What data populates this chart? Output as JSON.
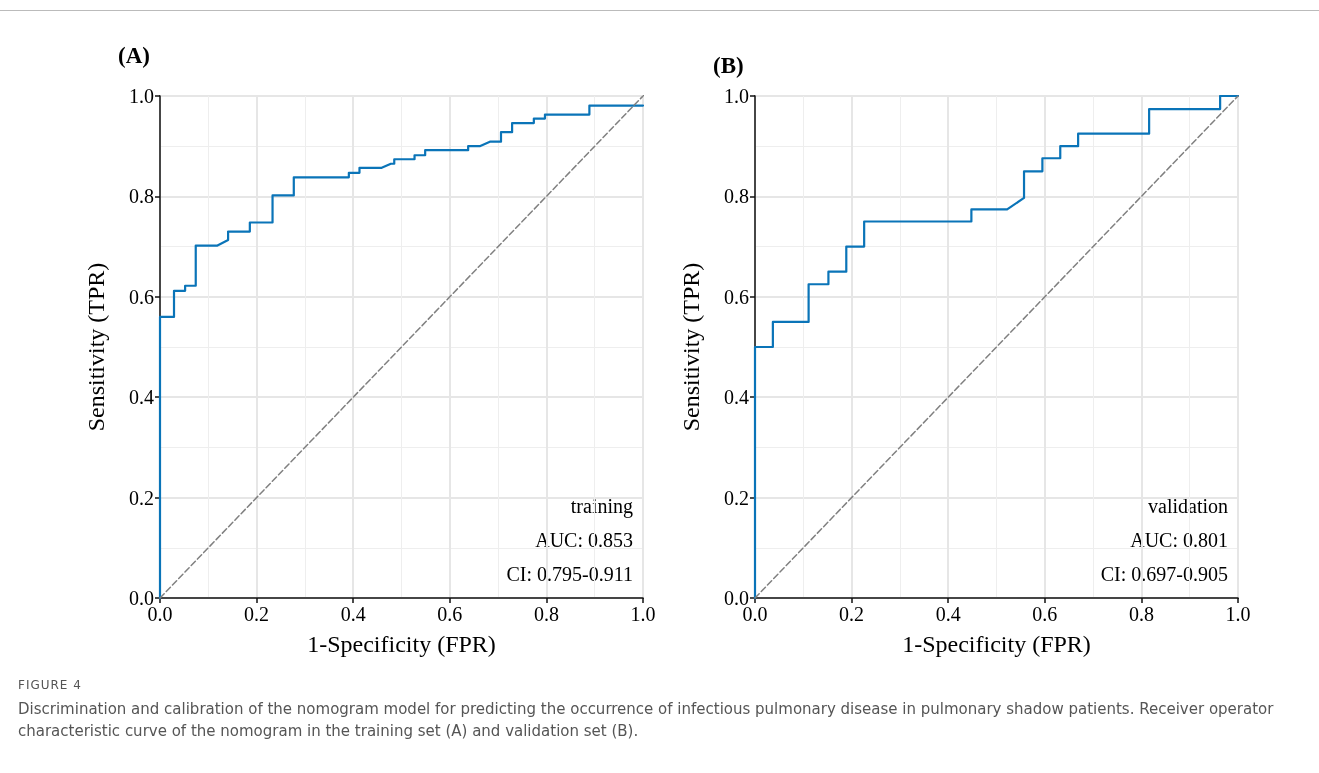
{
  "chart_data": [
    {
      "type": "line",
      "title": "(A)",
      "xlabel": "1-Specificity (FPR)",
      "ylabel": "Sensitivity (TPR)",
      "xlim": [
        0,
        1
      ],
      "ylim": [
        0,
        1
      ],
      "xticks": [
        {
          "value": 0,
          "label": "0.0"
        },
        {
          "value": 0.2,
          "label": "0.2"
        },
        {
          "value": 0.4,
          "label": "0.4"
        },
        {
          "value": 0.6,
          "label": "0.6"
        },
        {
          "value": 0.8,
          "label": "0.8"
        },
        {
          "value": 1,
          "label": "1.0"
        }
      ],
      "yticks": [
        {
          "value": 0,
          "label": "0.0"
        },
        {
          "value": 0.2,
          "label": "0.2"
        },
        {
          "value": 0.4,
          "label": "0.4"
        },
        {
          "value": 0.6,
          "label": "0.6"
        },
        {
          "value": 0.8,
          "label": "0.8"
        },
        {
          "value": 1,
          "label": "1.0"
        }
      ],
      "grid": true,
      "marker": "none",
      "annotations": [
        "training",
        "AUC: 0.853",
        "CI: 0.795-0.911"
      ],
      "series": [
        {
          "color": "#0a74b8",
          "line_style": "solid",
          "x": [
            0,
            0,
            0.029,
            0.029,
            0.052,
            0.052,
            0.074,
            0.074,
            0.119,
            0.141,
            0.141,
            0.186,
            0.186,
            0.233,
            0.233,
            0.277,
            0.277,
            0.391,
            0.391,
            0.413,
            0.413,
            0.459,
            0.478,
            0.485,
            0.485,
            0.527,
            0.527,
            0.549,
            0.549,
            0.638,
            0.638,
            0.662,
            0.683,
            0.706,
            0.706,
            0.729,
            0.729,
            0.774,
            0.774,
            0.797,
            0.797,
            0.889,
            0.889,
            1
          ],
          "values": [
            0,
            0.56,
            0.56,
            0.612,
            0.612,
            0.622,
            0.622,
            0.702,
            0.702,
            0.713,
            0.73,
            0.73,
            0.748,
            0.748,
            0.802,
            0.802,
            0.838,
            0.838,
            0.847,
            0.847,
            0.857,
            0.857,
            0.865,
            0.865,
            0.874,
            0.874,
            0.882,
            0.882,
            0.892,
            0.892,
            0.9,
            0.9,
            0.909,
            0.909,
            0.928,
            0.928,
            0.946,
            0.946,
            0.955,
            0.955,
            0.963,
            0.963,
            0.981,
            0.981
          ]
        },
        {
          "color": "#808080",
          "line_style": "dashed",
          "x": [
            0,
            1
          ],
          "values": [
            0,
            1
          ]
        }
      ]
    },
    {
      "type": "line",
      "title": "(B)",
      "xlabel": "1-Specificity (FPR)",
      "ylabel": "Sensitivity (TPR)",
      "xlim": [
        0,
        1
      ],
      "ylim": [
        0,
        1
      ],
      "xticks": [
        {
          "value": 0,
          "label": "0.0"
        },
        {
          "value": 0.2,
          "label": "0.2"
        },
        {
          "value": 0.4,
          "label": "0.4"
        },
        {
          "value": 0.6,
          "label": "0.6"
        },
        {
          "value": 0.8,
          "label": "0.8"
        },
        {
          "value": 1,
          "label": "1.0"
        }
      ],
      "yticks": [
        {
          "value": 0,
          "label": "0.0"
        },
        {
          "value": 0.2,
          "label": "0.2"
        },
        {
          "value": 0.4,
          "label": "0.4"
        },
        {
          "value": 0.6,
          "label": "0.6"
        },
        {
          "value": 0.8,
          "label": "0.8"
        },
        {
          "value": 1,
          "label": "1.0"
        }
      ],
      "grid": true,
      "marker": "none",
      "annotations": [
        "validation",
        "AUC: 0.801",
        "CI: 0.697-0.905",
        "FIGURE 4",
        "Discrimination and calibration of the nomogram model for predicting the occurrence of infectious pulmonary disease in pulmonary shadow patients. Receiver operator characteristic curve of the nomogram in the training set (A) and validation set (B)."
      ],
      "series": [
        {
          "color": "#0a74b8",
          "line_style": "solid",
          "x": [
            0,
            0,
            0.037,
            0.037,
            0.111,
            0.111,
            0.152,
            0.152,
            0.189,
            0.189,
            0.226,
            0.226,
            0.448,
            0.448,
            0.522,
            0.557,
            0.557,
            0.595,
            0.595,
            0.632,
            0.632,
            0.669,
            0.669,
            0.816,
            0.816,
            0.963,
            0.963,
            1
          ],
          "values": [
            0,
            0.5,
            0.5,
            0.55,
            0.55,
            0.625,
            0.625,
            0.65,
            0.65,
            0.7,
            0.7,
            0.75,
            0.75,
            0.774,
            0.774,
            0.797,
            0.85,
            0.85,
            0.876,
            0.876,
            0.9,
            0.9,
            0.925,
            0.925,
            0.974,
            0.974,
            1,
            1
          ]
        },
        {
          "color": "#808080",
          "line_style": "dashed",
          "x": [
            0,
            1
          ],
          "values": [
            0,
            1
          ]
        }
      ]
    }
  ]
}
